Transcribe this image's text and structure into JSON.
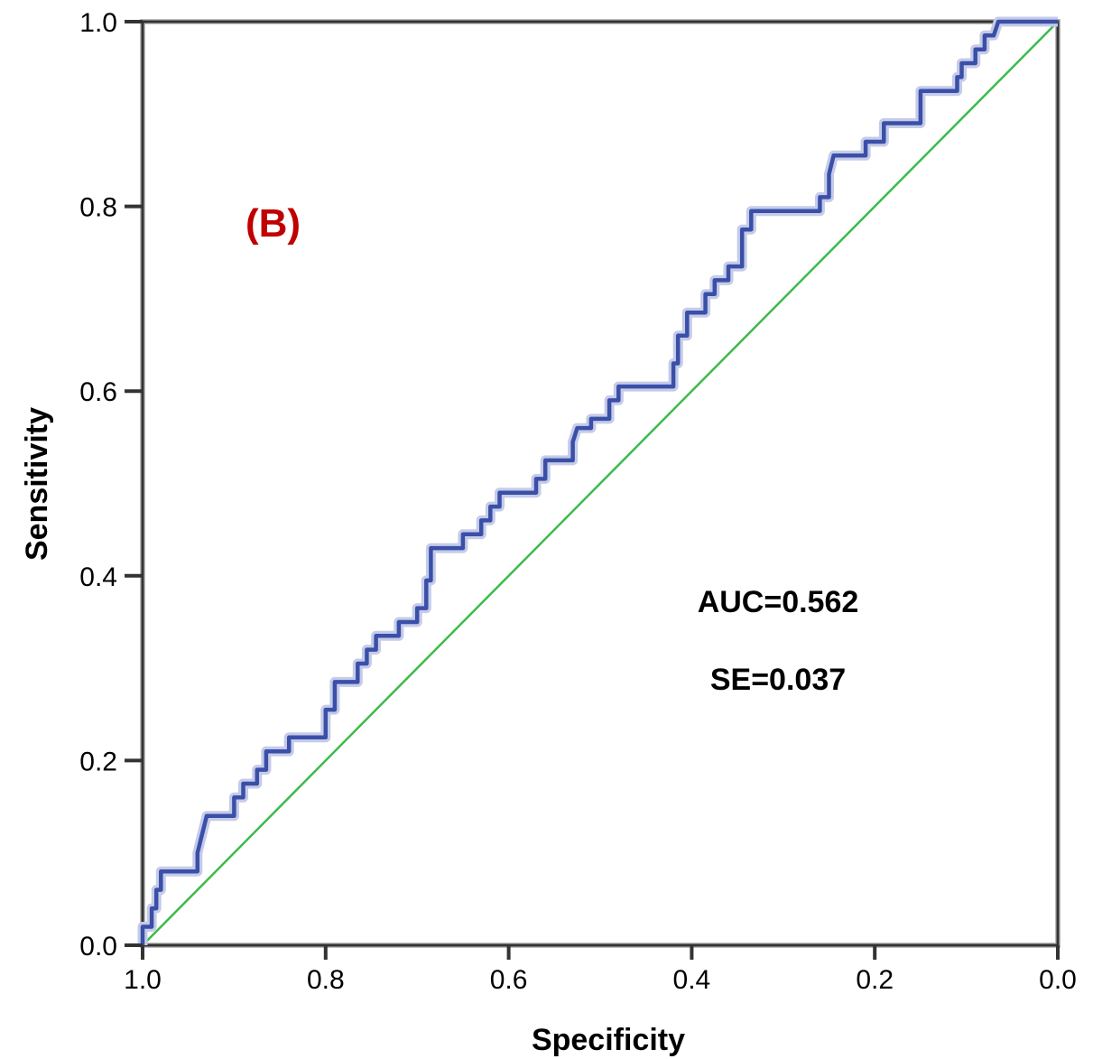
{
  "chart_data": {
    "type": "line",
    "panel_label": "(B)",
    "xlabel": "Specificity",
    "ylabel": "Sensitivity",
    "x_reversed": true,
    "xlim": [
      1.0,
      0.0
    ],
    "ylim": [
      0.0,
      1.0
    ],
    "xticks": [
      "1.0",
      "0.8",
      "0.6",
      "0.4",
      "0.2",
      "0.0"
    ],
    "yticks": [
      "0.0",
      "0.2",
      "0.4",
      "0.6",
      "0.8",
      "1.0"
    ],
    "grid": false,
    "annotations": [
      "AUC=0.562",
      "SE=0.037"
    ],
    "colors": {
      "roc": "#3a4fa8",
      "roc_halo": "#c5cbe8",
      "reference": "#3cba4a",
      "panel_label": "#c00000",
      "axes": "#333333"
    },
    "series": [
      {
        "key": "roc",
        "points": [
          [
            1.0,
            0.0
          ],
          [
            1.0,
            0.02
          ],
          [
            0.99,
            0.02
          ],
          [
            0.99,
            0.04
          ],
          [
            0.985,
            0.04
          ],
          [
            0.985,
            0.06
          ],
          [
            0.98,
            0.06
          ],
          [
            0.98,
            0.08
          ],
          [
            0.94,
            0.08
          ],
          [
            0.94,
            0.1
          ],
          [
            0.935,
            0.12
          ],
          [
            0.93,
            0.14
          ],
          [
            0.9,
            0.14
          ],
          [
            0.9,
            0.16
          ],
          [
            0.89,
            0.16
          ],
          [
            0.89,
            0.175
          ],
          [
            0.875,
            0.175
          ],
          [
            0.875,
            0.19
          ],
          [
            0.865,
            0.19
          ],
          [
            0.865,
            0.21
          ],
          [
            0.84,
            0.21
          ],
          [
            0.84,
            0.225
          ],
          [
            0.8,
            0.225
          ],
          [
            0.8,
            0.255
          ],
          [
            0.79,
            0.255
          ],
          [
            0.79,
            0.285
          ],
          [
            0.765,
            0.285
          ],
          [
            0.765,
            0.305
          ],
          [
            0.755,
            0.305
          ],
          [
            0.755,
            0.32
          ],
          [
            0.745,
            0.32
          ],
          [
            0.745,
            0.335
          ],
          [
            0.72,
            0.335
          ],
          [
            0.72,
            0.35
          ],
          [
            0.7,
            0.35
          ],
          [
            0.7,
            0.365
          ],
          [
            0.69,
            0.365
          ],
          [
            0.69,
            0.395
          ],
          [
            0.685,
            0.395
          ],
          [
            0.685,
            0.43
          ],
          [
            0.65,
            0.43
          ],
          [
            0.65,
            0.445
          ],
          [
            0.63,
            0.445
          ],
          [
            0.63,
            0.46
          ],
          [
            0.62,
            0.46
          ],
          [
            0.62,
            0.475
          ],
          [
            0.61,
            0.475
          ],
          [
            0.61,
            0.49
          ],
          [
            0.57,
            0.49
          ],
          [
            0.57,
            0.505
          ],
          [
            0.56,
            0.505
          ],
          [
            0.56,
            0.525
          ],
          [
            0.53,
            0.525
          ],
          [
            0.53,
            0.545
          ],
          [
            0.525,
            0.56
          ],
          [
            0.51,
            0.56
          ],
          [
            0.51,
            0.57
          ],
          [
            0.49,
            0.57
          ],
          [
            0.49,
            0.59
          ],
          [
            0.48,
            0.59
          ],
          [
            0.48,
            0.605
          ],
          [
            0.42,
            0.605
          ],
          [
            0.42,
            0.63
          ],
          [
            0.415,
            0.63
          ],
          [
            0.415,
            0.66
          ],
          [
            0.405,
            0.66
          ],
          [
            0.405,
            0.685
          ],
          [
            0.385,
            0.685
          ],
          [
            0.385,
            0.705
          ],
          [
            0.375,
            0.705
          ],
          [
            0.375,
            0.72
          ],
          [
            0.36,
            0.72
          ],
          [
            0.36,
            0.735
          ],
          [
            0.345,
            0.735
          ],
          [
            0.345,
            0.775
          ],
          [
            0.335,
            0.775
          ],
          [
            0.335,
            0.795
          ],
          [
            0.26,
            0.795
          ],
          [
            0.26,
            0.81
          ],
          [
            0.25,
            0.81
          ],
          [
            0.25,
            0.835
          ],
          [
            0.245,
            0.855
          ],
          [
            0.21,
            0.855
          ],
          [
            0.21,
            0.87
          ],
          [
            0.19,
            0.87
          ],
          [
            0.19,
            0.89
          ],
          [
            0.15,
            0.89
          ],
          [
            0.15,
            0.925
          ],
          [
            0.11,
            0.925
          ],
          [
            0.11,
            0.94
          ],
          [
            0.105,
            0.94
          ],
          [
            0.105,
            0.955
          ],
          [
            0.09,
            0.955
          ],
          [
            0.09,
            0.97
          ],
          [
            0.08,
            0.97
          ],
          [
            0.08,
            0.985
          ],
          [
            0.07,
            0.985
          ],
          [
            0.065,
            1.0
          ],
          [
            0.0,
            1.0
          ]
        ]
      },
      {
        "key": "reference",
        "points": [
          [
            1.0,
            0.0
          ],
          [
            0.0,
            1.0
          ]
        ]
      }
    ]
  }
}
